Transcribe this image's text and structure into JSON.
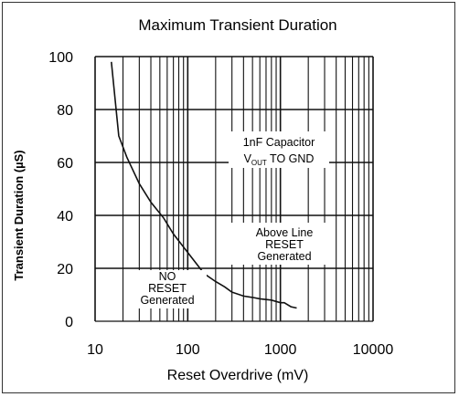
{
  "chart_data": {
    "type": "line",
    "title": "Maximum Transient Duration",
    "xlabel": "Reset Overdrive (mV)",
    "ylabel": "Transient Duration (µS)",
    "x_scale": "log",
    "xlim": [
      10,
      10000
    ],
    "ylim": [
      0,
      100
    ],
    "x_ticks": [
      "10",
      "100",
      "1000",
      "10000"
    ],
    "y_ticks": [
      "0",
      "20",
      "40",
      "60",
      "80",
      "100"
    ],
    "grid": true,
    "series": [
      {
        "x": [
          15,
          18,
          22,
          30,
          40,
          55,
          70,
          100,
          150,
          200,
          250,
          300,
          400,
          500,
          600,
          800,
          1000,
          1100,
          1300,
          1500
        ],
        "y": [
          98,
          70,
          62,
          52,
          45,
          39,
          33,
          26,
          18,
          15,
          13,
          11,
          9.5,
          9,
          8.5,
          8,
          7,
          7,
          5.5,
          5
        ]
      }
    ],
    "annotations": {
      "capacitor_line1": "1nF Capacitor",
      "capacitor_line2_prefix": "V",
      "capacitor_line2_sub": "OUT",
      "capacitor_line2_suffix": " TO GND",
      "above_line1": "Above Line",
      "above_line2": "RESET",
      "above_line3": "Generated",
      "below_line1": "NO",
      "below_line2": "RESET",
      "below_line3": "Generated"
    }
  }
}
